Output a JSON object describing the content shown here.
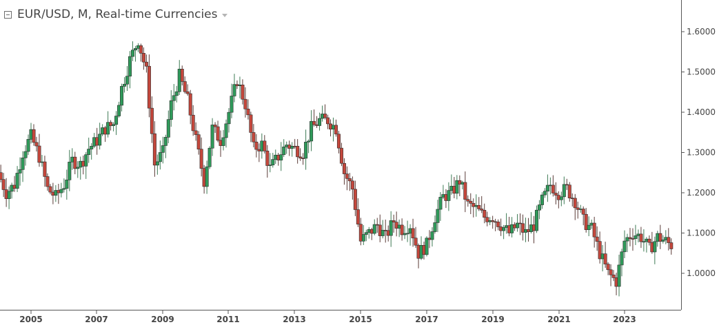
{
  "header": {
    "title": "EUR/USD, M, Real-time Currencies",
    "collapse_icon": "collapse-box-icon",
    "menu_icon": "caret-down-icon"
  },
  "colors": {
    "up": "#2f9a5a",
    "down": "#c4473c",
    "wick": "#2b2b2b",
    "axis": "#555555"
  },
  "chart_data": {
    "type": "candlestick",
    "title": "EUR/USD, M, Real-time Currencies",
    "timeframe": "monthly",
    "x_ticks": [
      "2005",
      "2007",
      "2009",
      "2011",
      "2013",
      "2015",
      "2017",
      "2019",
      "2021",
      "2023"
    ],
    "y_ticks": [
      "1.6000",
      "1.5000",
      "1.4000",
      "1.3000",
      "1.2000",
      "1.1000",
      "1.0000"
    ],
    "ylim": [
      0.92,
      1.67
    ],
    "xlim": [
      2004.0,
      2024.5
    ],
    "grid": false,
    "close_series": [
      [
        2004.0,
        1.25
      ],
      [
        2004.25,
        1.2
      ],
      [
        2004.5,
        1.22
      ],
      [
        2004.75,
        1.3
      ],
      [
        2005.0,
        1.34
      ],
      [
        2005.25,
        1.29
      ],
      [
        2005.5,
        1.21
      ],
      [
        2005.75,
        1.19
      ],
      [
        2006.0,
        1.22
      ],
      [
        2006.25,
        1.28
      ],
      [
        2006.5,
        1.27
      ],
      [
        2006.75,
        1.31
      ],
      [
        2007.0,
        1.33
      ],
      [
        2007.25,
        1.36
      ],
      [
        2007.5,
        1.37
      ],
      [
        2007.75,
        1.46
      ],
      [
        2008.0,
        1.53
      ],
      [
        2008.25,
        1.58
      ],
      [
        2008.5,
        1.5
      ],
      [
        2008.75,
        1.27
      ],
      [
        2009.0,
        1.3
      ],
      [
        2009.25,
        1.42
      ],
      [
        2009.5,
        1.49
      ],
      [
        2009.75,
        1.43
      ],
      [
        2010.0,
        1.33
      ],
      [
        2010.25,
        1.23
      ],
      [
        2010.5,
        1.36
      ],
      [
        2010.75,
        1.33
      ],
      [
        2011.0,
        1.4
      ],
      [
        2011.25,
        1.48
      ],
      [
        2011.5,
        1.42
      ],
      [
        2011.75,
        1.31
      ],
      [
        2012.0,
        1.32
      ],
      [
        2012.25,
        1.26
      ],
      [
        2012.5,
        1.29
      ],
      [
        2012.75,
        1.32
      ],
      [
        2013.0,
        1.31
      ],
      [
        2013.25,
        1.3
      ],
      [
        2013.5,
        1.36
      ],
      [
        2013.75,
        1.38
      ],
      [
        2014.0,
        1.38
      ],
      [
        2014.25,
        1.36
      ],
      [
        2014.5,
        1.25
      ],
      [
        2014.75,
        1.21
      ],
      [
        2015.0,
        1.08
      ],
      [
        2015.25,
        1.1
      ],
      [
        2015.5,
        1.12
      ],
      [
        2015.75,
        1.09
      ],
      [
        2016.0,
        1.13
      ],
      [
        2016.25,
        1.11
      ],
      [
        2016.5,
        1.12
      ],
      [
        2016.75,
        1.05
      ],
      [
        2017.0,
        1.07
      ],
      [
        2017.25,
        1.14
      ],
      [
        2017.5,
        1.19
      ],
      [
        2017.75,
        1.2
      ],
      [
        2018.0,
        1.23
      ],
      [
        2018.25,
        1.17
      ],
      [
        2018.5,
        1.16
      ],
      [
        2018.75,
        1.14
      ],
      [
        2019.0,
        1.14
      ],
      [
        2019.25,
        1.12
      ],
      [
        2019.5,
        1.1
      ],
      [
        2019.75,
        1.12
      ],
      [
        2020.0,
        1.1
      ],
      [
        2020.25,
        1.12
      ],
      [
        2020.5,
        1.18
      ],
      [
        2020.75,
        1.22
      ],
      [
        2021.0,
        1.2
      ],
      [
        2021.25,
        1.21
      ],
      [
        2021.5,
        1.18
      ],
      [
        2021.75,
        1.13
      ],
      [
        2022.0,
        1.11
      ],
      [
        2022.25,
        1.05
      ],
      [
        2022.5,
        1.0
      ],
      [
        2022.75,
        0.98
      ],
      [
        2023.0,
        1.08
      ],
      [
        2023.25,
        1.1
      ],
      [
        2023.5,
        1.09
      ],
      [
        2023.75,
        1.06
      ],
      [
        2024.0,
        1.09
      ],
      [
        2024.25,
        1.08
      ],
      [
        2024.4,
        1.07
      ]
    ],
    "price_range": {
      "low": 0.955,
      "high": 1.6
    }
  }
}
